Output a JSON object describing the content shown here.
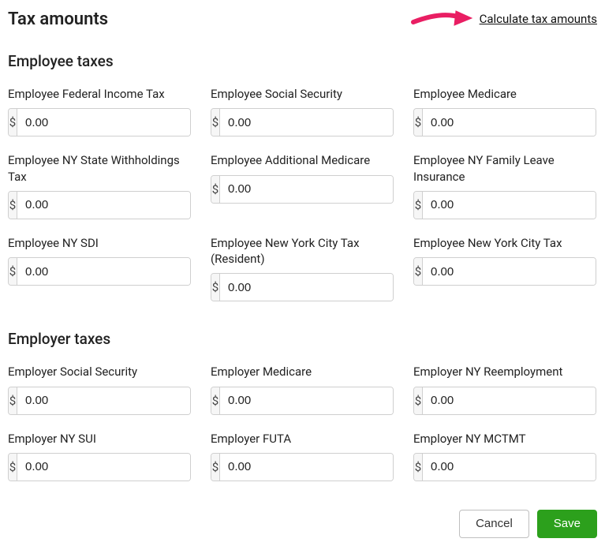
{
  "header": {
    "title": "Tax amounts",
    "calculate_link": "Calculate tax amounts"
  },
  "arrow": {
    "color": "#e91e63"
  },
  "currency_symbol": "$",
  "sections": {
    "employee": {
      "title": "Employee taxes",
      "fields": [
        {
          "label": "Employee Federal Income Tax",
          "value": "0.00"
        },
        {
          "label": "Employee Social Security",
          "value": "0.00"
        },
        {
          "label": "Employee Medicare",
          "value": "0.00"
        },
        {
          "label": "Employee NY State Withholdings Tax",
          "value": "0.00"
        },
        {
          "label": "Employee Additional Medicare",
          "value": "0.00"
        },
        {
          "label": "Employee NY Family Leave Insurance",
          "value": "0.00"
        },
        {
          "label": "Employee NY SDI",
          "value": "0.00"
        },
        {
          "label": "Employee New York City Tax (Resident)",
          "value": "0.00"
        },
        {
          "label": "Employee New York City Tax",
          "value": "0.00"
        }
      ]
    },
    "employer": {
      "title": "Employer taxes",
      "fields": [
        {
          "label": "Employer Social Security",
          "value": "0.00"
        },
        {
          "label": "Employer Medicare",
          "value": "0.00"
        },
        {
          "label": "Employer NY Reemployment",
          "value": "0.00"
        },
        {
          "label": "Employer NY SUI",
          "value": "0.00"
        },
        {
          "label": "Employer FUTA",
          "value": "0.00"
        },
        {
          "label": "Employer NY MCTMT",
          "value": "0.00"
        }
      ]
    }
  },
  "footer": {
    "cancel": "Cancel",
    "save": "Save"
  }
}
